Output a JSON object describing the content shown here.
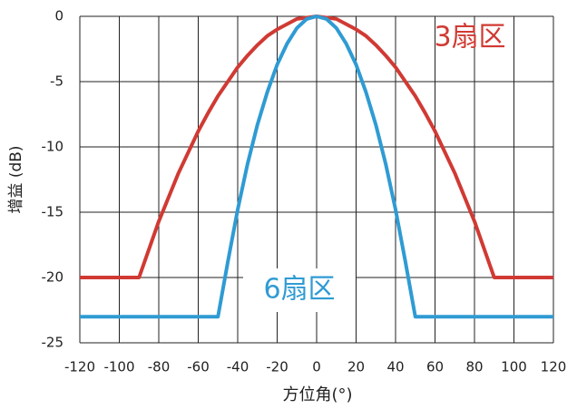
{
  "chart_data": {
    "type": "line",
    "xlabel": "方位角(°)",
    "ylabel": "增益 (dB)",
    "xlim": [
      -120,
      120
    ],
    "ylim": [
      -25,
      0
    ],
    "xticks": [
      -120,
      -100,
      -80,
      -60,
      -40,
      -20,
      0,
      20,
      40,
      60,
      80,
      100,
      120
    ],
    "yticks": [
      0,
      -5,
      -10,
      -15,
      -20,
      -25
    ],
    "grid": true,
    "series": [
      {
        "name": "3扇区",
        "color": "#d03a33",
        "x": [
          -120,
          -100,
          -90,
          -80,
          -70,
          -60,
          -55,
          -50,
          -45,
          -40,
          -35,
          -30,
          -25,
          -20,
          -15,
          -10,
          -5,
          0,
          5,
          10,
          15,
          20,
          25,
          30,
          35,
          40,
          45,
          50,
          55,
          60,
          70,
          80,
          90,
          100,
          120
        ],
        "values": [
          -20,
          -20,
          -20,
          -15.7,
          -12,
          -8.8,
          -7.4,
          -6.1,
          -5.0,
          -3.9,
          -3.0,
          -2.2,
          -1.5,
          -1.0,
          -0.6,
          -0.2,
          -0.1,
          0,
          -0.1,
          -0.2,
          -0.6,
          -1.0,
          -1.5,
          -2.2,
          -3.0,
          -3.9,
          -5.0,
          -6.1,
          -7.4,
          -8.8,
          -12,
          -15.7,
          -20,
          -20,
          -20
        ]
      },
      {
        "name": "6扇区",
        "color": "#2f9bd3",
        "x": [
          -120,
          -100,
          -90,
          -80,
          -70,
          -60,
          -55,
          -50,
          -45,
          -40,
          -35,
          -30,
          -25,
          -20,
          -15,
          -10,
          -5,
          0,
          5,
          10,
          15,
          20,
          25,
          30,
          35,
          40,
          45,
          50,
          55,
          60,
          70,
          80,
          90,
          100,
          120
        ],
        "values": [
          -23,
          -23,
          -23,
          -23,
          -23,
          -23,
          -23,
          -23,
          -18.8,
          -14.8,
          -11.3,
          -8.3,
          -5.8,
          -3.7,
          -2.1,
          -0.9,
          -0.2,
          0,
          -0.2,
          -0.9,
          -2.1,
          -3.7,
          -5.8,
          -8.3,
          -11.3,
          -14.8,
          -18.8,
          -23,
          -23,
          -23,
          -23,
          -23,
          -23,
          -23,
          -23
        ]
      }
    ]
  }
}
